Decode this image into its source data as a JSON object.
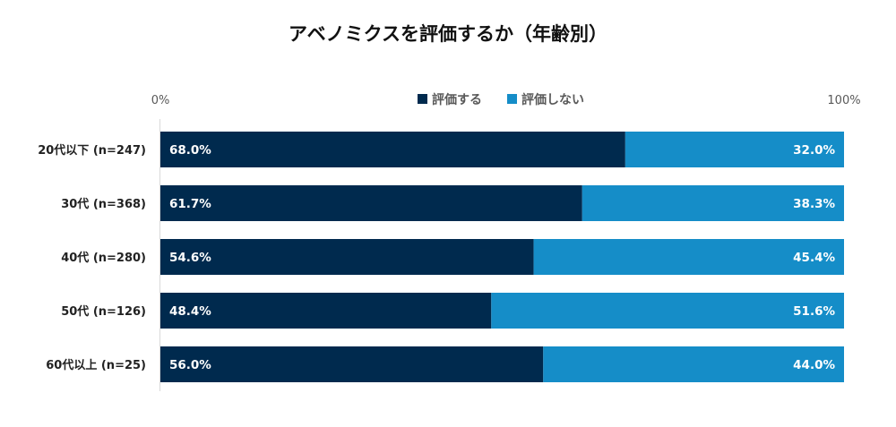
{
  "chart_data": {
    "type": "bar",
    "orientation": "horizontal",
    "stacked": true,
    "title": "アベノミクスを評価するか（年齢別）",
    "categories": [
      "20代以下 (n=247)",
      "30代 (n=368)",
      "40代 (n=280)",
      "50代 (n=126)",
      "60代以上 (n=25)"
    ],
    "series": [
      {
        "name": "評価する",
        "values": [
          68.0,
          61.7,
          54.6,
          48.4,
          56.0
        ],
        "color": "#002A4E"
      },
      {
        "name": "評価しない",
        "values": [
          32.0,
          38.3,
          45.4,
          51.6,
          44.0
        ],
        "color": "#158DC8"
      }
    ],
    "xlim": [
      0,
      100
    ],
    "xticks": [
      "0%",
      "100%"
    ],
    "legend_position": "top",
    "grid": false
  }
}
